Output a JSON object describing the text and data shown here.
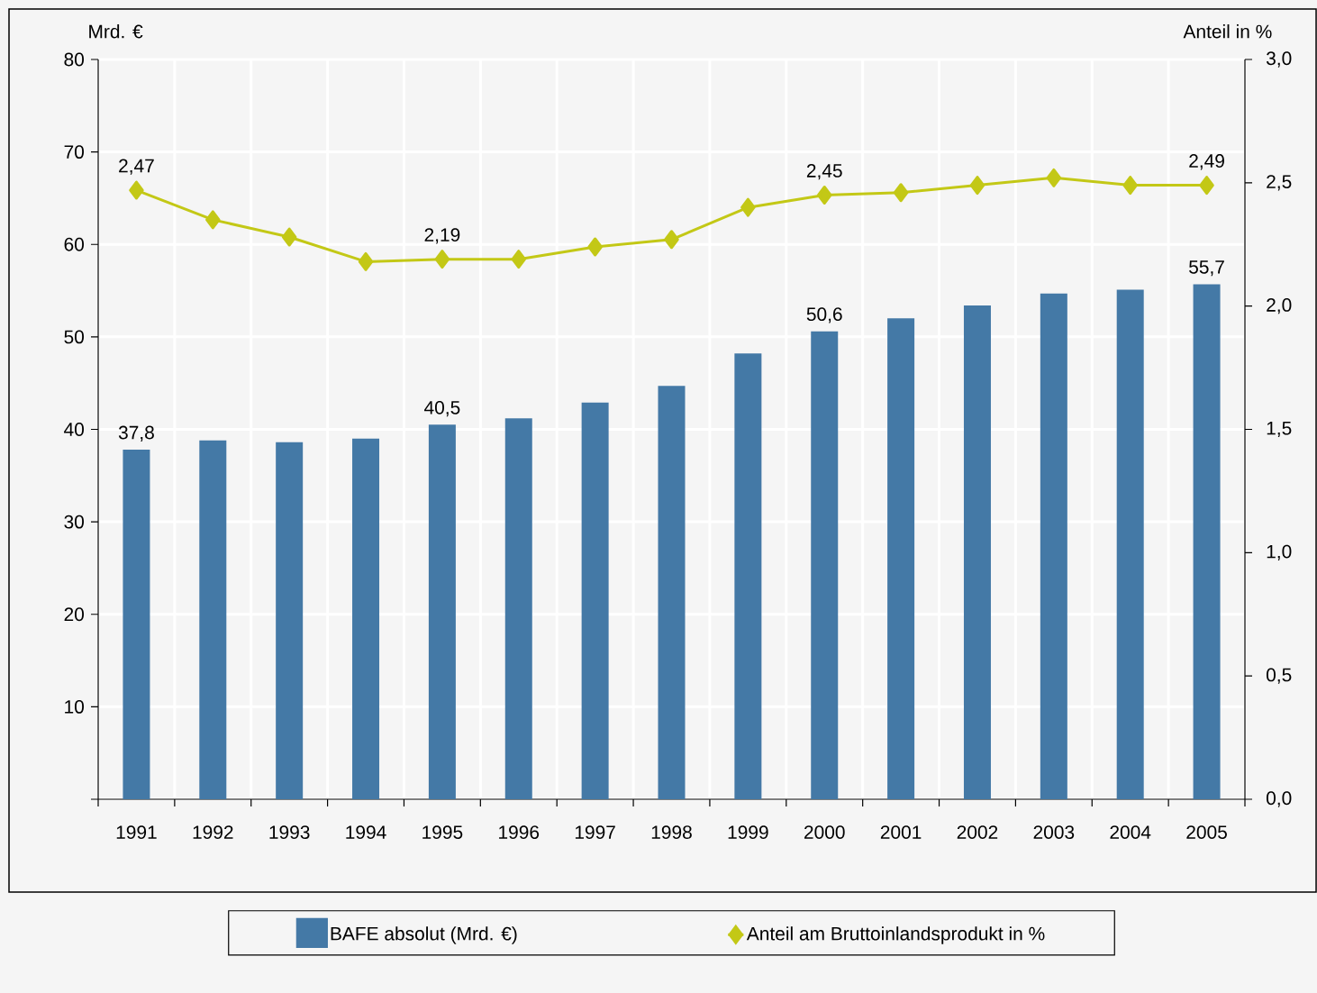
{
  "chart_data": {
    "type": "bar",
    "categories": [
      "1991",
      "1992",
      "1993",
      "1994",
      "1995",
      "1996",
      "1997",
      "1998",
      "1999",
      "2000",
      "2001",
      "2002",
      "2003",
      "2004",
      "2005"
    ],
    "ylabel": "Mrd. €",
    "y2label": "Anteil in %",
    "grid": true,
    "legend": "bottom",
    "ylim": [
      0,
      80
    ],
    "yticks": [
      {
        "value": 0,
        "label": null
      },
      10,
      20,
      30,
      40,
      50,
      60,
      70,
      80
    ],
    "y2lim": [
      0,
      3
    ],
    "y2ticks": [
      {
        "value": 0,
        "label": "0,0"
      },
      {
        "value": 0.5,
        "label": "0,5"
      },
      {
        "value": 1,
        "label": "1,0"
      },
      {
        "value": 1.5,
        "label": "1,5"
      },
      {
        "value": 2,
        "label": "2,0"
      },
      {
        "value": 2.5,
        "label": "2,5"
      },
      {
        "value": 3,
        "label": "3,0"
      }
    ],
    "series": [
      {
        "name": "BAFE absolut (Mrd. €)",
        "color": "#4479a6",
        "values": [
          37.8,
          38.8,
          38.6,
          39.0,
          40.5,
          41.2,
          42.9,
          44.7,
          48.2,
          50.6,
          52.0,
          53.4,
          54.7,
          55.1,
          55.7
        ],
        "value_labels": [
          "37,8",
          null,
          null,
          null,
          "40,5",
          null,
          null,
          null,
          null,
          "50,6",
          null,
          null,
          null,
          null,
          "55,7"
        ]
      },
      {
        "name": "Anteil am Bruttoinlandsprodukt in %",
        "type": "line",
        "axis": "y2",
        "marker": "diamond",
        "color": "#c3c816",
        "values": [
          2.47,
          2.35,
          2.28,
          2.18,
          2.19,
          2.19,
          2.24,
          2.27,
          2.4,
          2.45,
          2.46,
          2.49,
          2.52,
          2.49,
          2.49
        ],
        "value_labels": [
          "2,47",
          null,
          null,
          null,
          "2,19",
          null,
          null,
          null,
          null,
          "2,45",
          null,
          null,
          null,
          null,
          "2,49"
        ]
      }
    ]
  }
}
